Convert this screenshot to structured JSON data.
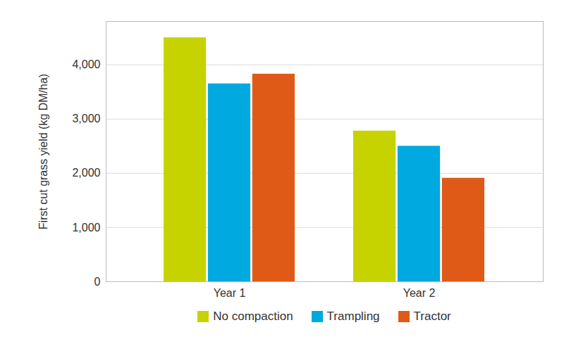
{
  "chart_data": {
    "type": "bar",
    "categories": [
      "Year 1",
      "Year 2"
    ],
    "series": [
      {
        "name": "No compaction",
        "color": "#c6d300",
        "values": [
          4500,
          2780
        ]
      },
      {
        "name": "Trampling",
        "color": "#00a9e0",
        "values": [
          3650,
          2500
        ]
      },
      {
        "name": "Tractor",
        "color": "#e05a17",
        "values": [
          3830,
          1910
        ]
      }
    ],
    "y_label": "First cut grass yield (kg DM/ha)",
    "ylim": [
      0,
      4800
    ],
    "yticks": [
      0,
      {
        "value": 1000,
        "label": "1,000"
      },
      {
        "value": 2000,
        "label": "2,000"
      },
      {
        "value": 3000,
        "label": "3,000"
      },
      {
        "value": 4000,
        "label": "4,000"
      }
    ],
    "grid": true,
    "legend": "bottom"
  }
}
